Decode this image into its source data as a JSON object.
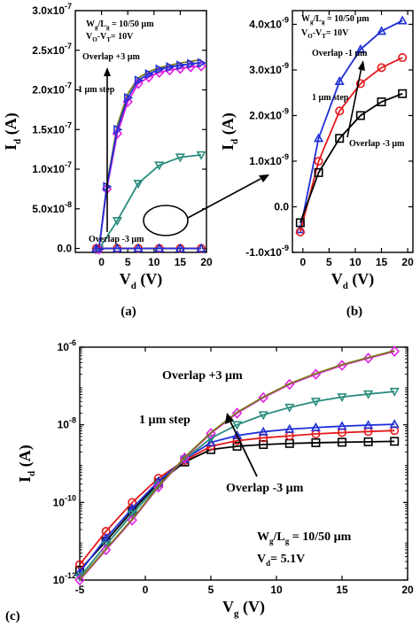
{
  "colors": {
    "black": "#000000",
    "red": "#e41a1c",
    "blue": "#1f2fd6",
    "teal": "#2a8c7e",
    "magenta": "#e020e0",
    "olive": "#7a7a1a"
  },
  "chart_data": [
    {
      "panel": "(a)",
      "type": "line",
      "xlabel_main": "V",
      "xlabel_sub": "d",
      "xlabel_unit": " (V)",
      "ylabel_main": "I",
      "ylabel_sub": "d",
      "ylabel_unit": " (A)",
      "xlim": [
        -5,
        20
      ],
      "ylim": [
        -5e-09,
        3e-07
      ],
      "xticks": [
        {
          "v": 0,
          "t": "0"
        },
        {
          "v": 5,
          "t": "5"
        },
        {
          "v": 10,
          "t": "10"
        },
        {
          "v": 15,
          "t": "15"
        },
        {
          "v": 20,
          "t": "20"
        }
      ],
      "yticks": [
        {
          "v": 0,
          "t": "0.0"
        },
        {
          "v": 5e-08,
          "t": "5.0x10",
          "e": "-8"
        },
        {
          "v": 1e-07,
          "t": "1.0x10",
          "e": "-7"
        },
        {
          "v": 1.5e-07,
          "t": "1.5x10",
          "e": "-7"
        },
        {
          "v": 2e-07,
          "t": "2.0x10",
          "e": "-7"
        },
        {
          "v": 2.5e-07,
          "t": "2.5x10",
          "e": "-7"
        },
        {
          "v": 3e-07,
          "t": "3.0x10",
          "e": "-7"
        }
      ],
      "annotations": {
        "wl_main": "W",
        "wl_sub1": "g",
        "wl_mid": "/L",
        "wl_sub2": "g",
        "wl_val": " = 10/50 µm",
        "vo_main": "V",
        "vo_sub1": "O",
        "vo_mid": "-V",
        "vo_sub2": "T",
        "vo_val": "= 10V",
        "overlap_plus": "Overlap +3 µm",
        "step": "1 µm step",
        "overlap_minus": "Overlap -3 µm"
      },
      "series": [
        {
          "color": "teal",
          "marker": "tri-down",
          "x": [
            -0.5,
            3,
            7,
            11,
            15,
            19
          ],
          "y": [
            -1e-09,
            3.5e-08,
            8.2e-08,
            1.05e-07,
            1.15e-07,
            1.18e-07
          ]
        },
        {
          "color": "olive",
          "marker": "none",
          "x": [
            -0.5,
            1,
            3,
            5,
            7,
            9,
            11,
            13,
            15,
            17,
            19
          ],
          "y": [
            -1e-09,
            8e-08,
            1.55e-07,
            1.95e-07,
            2.15e-07,
            2.23e-07,
            2.28e-07,
            2.31e-07,
            2.34e-07,
            2.36e-07,
            2.38e-07
          ]
        },
        {
          "color": "magenta",
          "marker": "diamond",
          "x": [
            -0.5,
            1,
            3,
            5,
            7,
            9,
            11,
            13,
            15,
            17,
            19
          ],
          "y": [
            -1e-09,
            7.5e-08,
            1.45e-07,
            1.85e-07,
            2.08e-07,
            2.16e-07,
            2.22e-07,
            2.25e-07,
            2.27e-07,
            2.29e-07,
            2.3e-07
          ]
        },
        {
          "color": "blue",
          "marker": "tri-right",
          "x": [
            -0.5,
            1,
            3,
            5,
            7,
            9,
            11,
            13,
            15,
            17,
            19
          ],
          "y": [
            -1e-09,
            7.8e-08,
            1.5e-07,
            1.9e-07,
            2.12e-07,
            2.2e-07,
            2.26e-07,
            2.29e-07,
            2.31e-07,
            2.33e-07,
            2.34e-07
          ]
        },
        {
          "color": "black",
          "marker": "none",
          "x": [
            -1,
            19
          ],
          "y": [
            0,
            0
          ]
        },
        {
          "color": "red",
          "marker": "circle",
          "x": [
            -1,
            3,
            7,
            11,
            15,
            19
          ],
          "y": [
            0,
            0,
            0,
            0,
            0,
            0
          ]
        },
        {
          "color": "blue",
          "marker": "triangle",
          "x": [
            -1,
            3,
            7,
            11,
            15,
            19
          ],
          "y": [
            0,
            0,
            0,
            0,
            0,
            0
          ]
        }
      ]
    },
    {
      "panel": "(b)",
      "type": "line",
      "xlabel_main": "V",
      "xlabel_sub": "d",
      "xlabel_unit": " (V)",
      "ylabel_main": "I",
      "ylabel_sub": "d",
      "ylabel_unit": " (A)",
      "xlim": [
        -2,
        21
      ],
      "ylim": [
        -1e-09,
        4.3e-09
      ],
      "xticks": [
        {
          "v": 0,
          "t": "0"
        },
        {
          "v": 5,
          "t": "5"
        },
        {
          "v": 10,
          "t": "10"
        },
        {
          "v": 15,
          "t": "15"
        },
        {
          "v": 20,
          "t": "20"
        }
      ],
      "yticks": [
        {
          "v": -1e-09,
          "t": "-1.0x10",
          "e": "-9"
        },
        {
          "v": 0,
          "t": "0.0"
        },
        {
          "v": 1e-09,
          "t": "1.0x10",
          "e": "-9"
        },
        {
          "v": 2e-09,
          "t": "2.0x10",
          "e": "-9"
        },
        {
          "v": 3e-09,
          "t": "3.0x10",
          "e": "-9"
        },
        {
          "v": 4e-09,
          "t": "4.0x10",
          "e": "-9"
        }
      ],
      "annotations": {
        "wl_main": "W",
        "wl_sub1": "g",
        "wl_mid": "/L",
        "wl_sub2": "g",
        "wl_val": " = 10/50 µm",
        "vo_main": "V",
        "vo_sub1": "O",
        "vo_mid": "-V",
        "vo_sub2": "T",
        "vo_val": "= 10V",
        "overlap_plus": "Overlap -1 µm",
        "step": "1 µm step",
        "overlap_minus": "Overlap -3 µm"
      },
      "series": [
        {
          "color": "blue",
          "marker": "triangle",
          "x": [
            -0.5,
            3,
            7,
            11,
            15,
            19
          ],
          "y": [
            -5e-10,
            1.5e-09,
            2.75e-09,
            3.45e-09,
            3.85e-09,
            4.08e-09
          ]
        },
        {
          "color": "red",
          "marker": "circle",
          "x": [
            -0.5,
            3,
            7,
            11,
            15,
            19
          ],
          "y": [
            -5.5e-10,
            1e-09,
            2.1e-09,
            2.7e-09,
            3.05e-09,
            3.27e-09
          ]
        },
        {
          "color": "black",
          "marker": "square",
          "x": [
            -0.5,
            3,
            7,
            11,
            15,
            19
          ],
          "y": [
            -3.5e-10,
            7.5e-10,
            1.5e-09,
            2e-09,
            2.3e-09,
            2.48e-09
          ]
        }
      ]
    },
    {
      "panel": "(c)",
      "type": "line",
      "yscale": "log",
      "xlabel_main": "V",
      "xlabel_sub": "g",
      "xlabel_unit": " (V)",
      "ylabel_main": "I",
      "ylabel_sub": "d",
      "ylabel_unit": " (A)",
      "xlim": [
        -5,
        20
      ],
      "ylim": [
        1e-12,
        1e-06
      ],
      "xticks": [
        {
          "v": -5,
          "t": "-5"
        },
        {
          "v": 0,
          "t": "0"
        },
        {
          "v": 5,
          "t": "5"
        },
        {
          "v": 10,
          "t": "10"
        },
        {
          "v": 15,
          "t": "15"
        },
        {
          "v": 20,
          "t": "20"
        }
      ],
      "yticks": [
        {
          "v": 1e-12,
          "t": "10",
          "e": "-12"
        },
        {
          "v": 1e-10,
          "t": "10",
          "e": "-10"
        },
        {
          "v": 1e-08,
          "t": "10",
          "e": "-8"
        },
        {
          "v": 1e-06,
          "t": "10",
          "e": "-6"
        }
      ],
      "annotations": {
        "wl_main": "W",
        "wl_sub1": "g",
        "wl_mid": "/L",
        "wl_sub2": "g",
        "wl_val": " = 10/50 µm",
        "vd_main": "V",
        "vd_sub": "d",
        "vd_val": "= 5.1V",
        "overlap_plus": "Overlap +3 µm",
        "step": "1 µm  step",
        "overlap_minus": "Overlap -3 µm"
      },
      "series": [
        {
          "color": "black",
          "marker": "square",
          "x": [
            -5,
            -3,
            -1,
            1,
            3,
            5,
            7,
            9,
            11,
            13,
            15,
            17,
            19
          ],
          "y": [
            1.8e-12,
            1e-11,
            6e-11,
            3.2e-10,
            1.1e-09,
            2.3e-09,
            2.8e-09,
            3.1e-09,
            3.3e-09,
            3.45e-09,
            3.55e-09,
            3.65e-09,
            3.75e-09
          ]
        },
        {
          "color": "red",
          "marker": "circle",
          "x": [
            -5,
            -3,
            -1,
            1,
            3,
            5,
            7,
            9,
            11,
            13,
            15,
            17,
            19
          ],
          "y": [
            2.5e-12,
            1.8e-11,
            1e-10,
            4.2e-10,
            1.2e-09,
            2.8e-09,
            3.9e-09,
            4.6e-09,
            5.2e-09,
            5.8e-09,
            6.3e-09,
            6.7e-09,
            7.1e-09
          ]
        },
        {
          "color": "blue",
          "marker": "triangle",
          "x": [
            -5,
            -3,
            -1,
            1,
            3,
            5,
            7,
            9,
            11,
            13,
            15,
            17,
            19
          ],
          "y": [
            1.6e-12,
            1.2e-11,
            7e-11,
            3.5e-10,
            1.3e-09,
            3.5e-09,
            5.3e-09,
            6.6e-09,
            7.7e-09,
            8.5e-09,
            9.2e-09,
            9.8e-09,
            1.03e-08
          ]
        },
        {
          "color": "teal",
          "marker": "tri-down",
          "x": [
            -5,
            -3,
            -1,
            1,
            3,
            5,
            7,
            9,
            11,
            13,
            15,
            17,
            19
          ],
          "y": [
            1.2e-12,
            8e-12,
            5e-11,
            2.8e-10,
            1.3e-09,
            4.5e-09,
            1e-08,
            1.8e-08,
            2.8e-08,
            4e-08,
            5.2e-08,
            6.2e-08,
            7.2e-08
          ]
        },
        {
          "color": "magenta",
          "marker": "diamond",
          "x": [
            -5,
            -3,
            -1,
            1,
            3,
            5,
            7,
            9,
            11,
            13,
            15,
            17,
            19
          ],
          "y": [
            1e-12,
            6e-12,
            3.5e-11,
            2.5e-10,
            1.4e-09,
            6e-09,
            2e-08,
            5e-08,
            1.1e-07,
            2e-07,
            3.4e-07,
            5.2e-07,
            7.8e-07
          ]
        },
        {
          "color": "olive",
          "marker": "none",
          "x": [
            -5,
            -3,
            -1,
            1,
            3,
            5,
            7,
            9,
            11,
            13,
            15,
            17,
            19
          ],
          "y": [
            1.05e-12,
            6.3e-12,
            3.7e-11,
            2.6e-10,
            1.45e-09,
            6.3e-09,
            2.1e-08,
            5.2e-08,
            1.15e-07,
            2.1e-07,
            3.55e-07,
            5.4e-07,
            8.1e-07
          ]
        }
      ]
    }
  ]
}
